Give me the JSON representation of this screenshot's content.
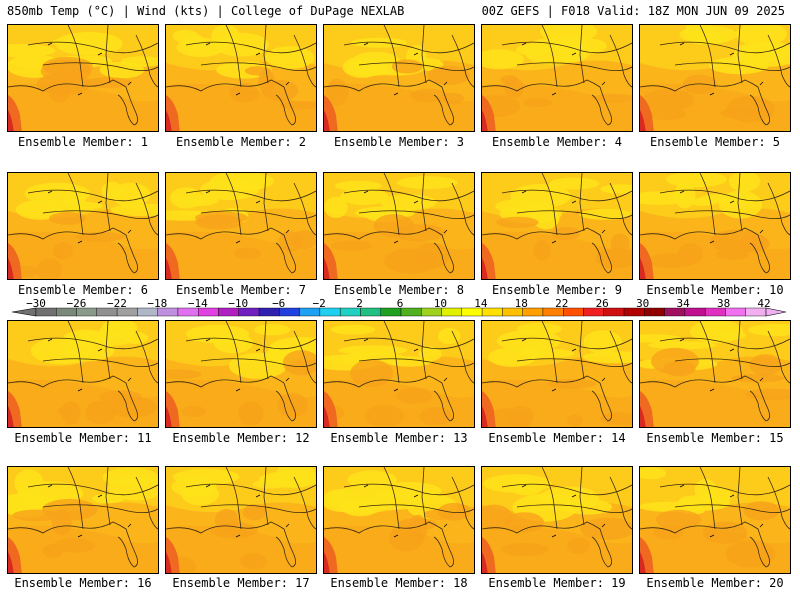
{
  "header": {
    "left": "850mb Temp (°C) | Wind (kts) | College of DuPage NEXLAB",
    "right": "00Z GEFS | F018 Valid: 18Z MON JUN 09 2025"
  },
  "panels": [
    {
      "label": "Ensemble Member: 1"
    },
    {
      "label": "Ensemble Member: 2"
    },
    {
      "label": "Ensemble Member: 3"
    },
    {
      "label": "Ensemble Member: 4"
    },
    {
      "label": "Ensemble Member: 5"
    },
    {
      "label": "Ensemble Member: 6"
    },
    {
      "label": "Ensemble Member: 7"
    },
    {
      "label": "Ensemble Member: 8"
    },
    {
      "label": "Ensemble Member: 9"
    },
    {
      "label": "Ensemble Member: 10"
    },
    {
      "label": "Ensemble Member: 11"
    },
    {
      "label": "Ensemble Member: 12"
    },
    {
      "label": "Ensemble Member: 13"
    },
    {
      "label": "Ensemble Member: 14"
    },
    {
      "label": "Ensemble Member: 15"
    },
    {
      "label": "Ensemble Member: 16"
    },
    {
      "label": "Ensemble Member: 17"
    },
    {
      "label": "Ensemble Member: 18"
    },
    {
      "label": "Ensemble Member: 19"
    },
    {
      "label": "Ensemble Member: 20"
    }
  ],
  "colorbar": {
    "tick_labels": [
      "−30",
      "−26",
      "−22",
      "−18",
      "−14",
      "−10",
      "−6",
      "−2",
      "2",
      "6",
      "10",
      "14",
      "18",
      "22",
      "26",
      "30",
      "34",
      "38",
      "42"
    ],
    "colors": [
      "#707070",
      "#7a8878",
      "#8a9a8a",
      "#909090",
      "#a0a0a0",
      "#b0b8c8",
      "#c090e0",
      "#e070f0",
      "#e040e0",
      "#b020c0",
      "#7020c0",
      "#3020b0",
      "#2040e0",
      "#20a0f0",
      "#20d0f0",
      "#20d0c0",
      "#20c080",
      "#20a020",
      "#50b020",
      "#a0d020",
      "#e0f000",
      "#ffff00",
      "#ffe000",
      "#ffc000",
      "#ffa000",
      "#ff8000",
      "#ff5000",
      "#f02020",
      "#d01010",
      "#b00000",
      "#900000",
      "#a01060",
      "#c01090",
      "#e030c0",
      "#f070f0",
      "#f0b0f0"
    ]
  },
  "map_colors": {
    "deep_orange": "#f7a21a",
    "orange": "#fbb51a",
    "yellow_orange": "#fdcb1a",
    "yellow": "#fee31a",
    "red_orange": "#ef6a20",
    "red": "#d82a20"
  }
}
